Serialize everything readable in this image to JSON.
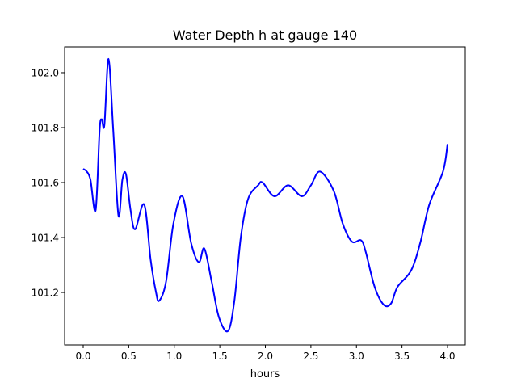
{
  "chart_data": {
    "type": "line",
    "title": "Water Depth h at gauge 140",
    "xlabel": "hours",
    "ylabel": "",
    "xlim": [
      -0.204,
      4.195
    ],
    "ylim": [
      101.009,
      102.094
    ],
    "xticks": [
      0.0,
      0.5,
      1.0,
      1.5,
      2.0,
      2.5,
      3.0,
      3.5,
      4.0
    ],
    "xtick_labels": [
      "0.0",
      "0.5",
      "1.0",
      "1.5",
      "2.0",
      "2.5",
      "3.0",
      "3.5",
      "4.0"
    ],
    "yticks": [
      101.2,
      101.4,
      101.6,
      101.8,
      102.0
    ],
    "ytick_labels": [
      "101.2",
      "101.4",
      "101.6",
      "101.8",
      "102.0"
    ],
    "grid": false,
    "series": [
      {
        "name": "h",
        "color": "#0000ff",
        "x": [
          0.0,
          0.04,
          0.08,
          0.137,
          0.18,
          0.204,
          0.233,
          0.278,
          0.33,
          0.387,
          0.43,
          0.47,
          0.52,
          0.57,
          0.67,
          0.74,
          0.8,
          0.835,
          0.91,
          0.99,
          1.09,
          1.185,
          1.27,
          1.33,
          1.41,
          1.49,
          1.59,
          1.66,
          1.73,
          1.81,
          1.92,
          1.97,
          2.1,
          2.25,
          2.4,
          2.5,
          2.6,
          2.75,
          2.85,
          2.95,
          3.05,
          3.1,
          3.2,
          3.3,
          3.38,
          3.45,
          3.6,
          3.7,
          3.8,
          3.95,
          4.0
        ],
        "values": [
          101.65,
          101.64,
          101.61,
          101.5,
          101.79,
          101.83,
          101.81,
          102.05,
          101.79,
          101.48,
          101.61,
          101.63,
          101.5,
          101.43,
          101.52,
          101.32,
          101.2,
          101.17,
          101.24,
          101.45,
          101.55,
          101.38,
          101.31,
          101.36,
          101.24,
          101.11,
          101.06,
          101.17,
          101.4,
          101.54,
          101.59,
          101.6,
          101.55,
          101.59,
          101.55,
          101.59,
          101.64,
          101.57,
          101.45,
          101.385,
          101.39,
          101.35,
          101.22,
          101.155,
          101.16,
          101.22,
          101.28,
          101.38,
          101.52,
          101.64,
          101.74
        ]
      }
    ]
  }
}
